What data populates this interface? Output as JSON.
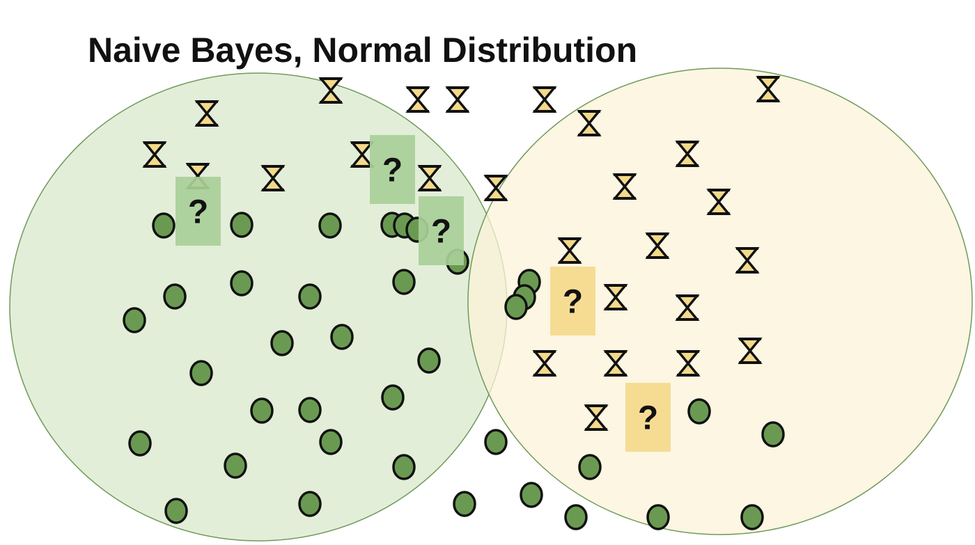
{
  "title": "Naive Bayes, Normal Distribution",
  "unknown_label": "?",
  "colors": {
    "green_region_fill": "#e3eed9",
    "green_region_stroke": "#6f9a5a",
    "yellow_region_fill": "#fbf3d8",
    "yellow_region_stroke": "#6f9a5a",
    "circle_fill": "#6a9a52",
    "hourglass_fill": "#f3d98a",
    "mark_stroke": "#111111",
    "green_box": "#a9cf98",
    "yellow_box": "#f5d98c",
    "title": "#111111"
  },
  "icons": {
    "green_point": "circle-icon",
    "yellow_point": "hourglass-icon"
  }
}
